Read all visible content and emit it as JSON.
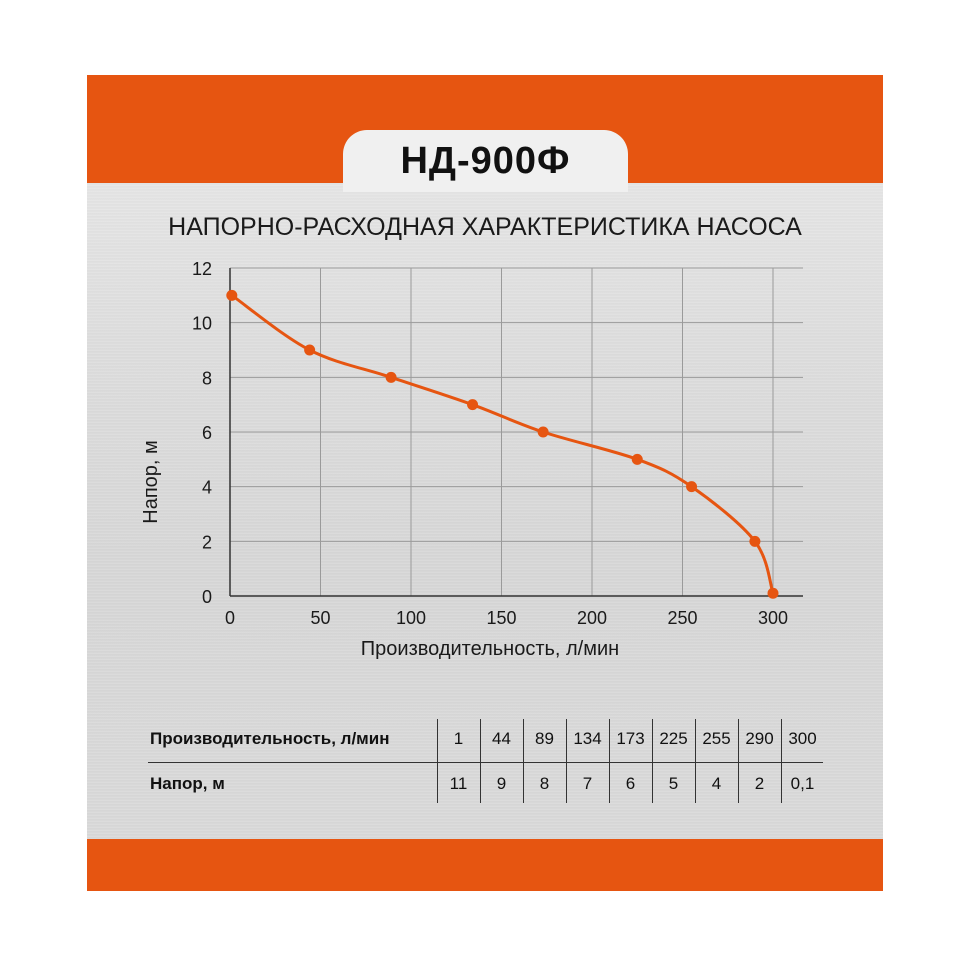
{
  "header": {
    "model": "НД-900Ф",
    "subtitle": "НАПОРНО-РАСХОДНАЯ ХАРАКТЕРИСТИКА НАСОСА"
  },
  "colors": {
    "accent": "#e65511",
    "curve": "#e65511",
    "grid": "#9a9a9a"
  },
  "chart_data": {
    "type": "line",
    "xlabel": "Производительность, л/мин",
    "ylabel": "Напор, м",
    "xlim": [
      0,
      300
    ],
    "ylim": [
      0,
      12
    ],
    "xticks": [
      "0",
      "50",
      "100",
      "150",
      "200",
      "250",
      "300"
    ],
    "yticks": [
      "0",
      "2",
      "4",
      "6",
      "8",
      "10",
      "12"
    ],
    "grid": true,
    "series": [
      {
        "x": [
          1,
          44,
          89,
          134,
          173,
          225,
          255,
          290,
          300
        ],
        "y": [
          11,
          9,
          8,
          7,
          6,
          5,
          4,
          2,
          0.1
        ]
      }
    ]
  },
  "table": {
    "rows": [
      {
        "label": "Производительность, л/мин",
        "values": [
          "1",
          "44",
          "89",
          "134",
          "173",
          "225",
          "255",
          "290",
          "300"
        ]
      },
      {
        "label": "Напор, м",
        "values": [
          "11",
          "9",
          "8",
          "7",
          "6",
          "5",
          "4",
          "2",
          "0,1"
        ]
      }
    ]
  }
}
